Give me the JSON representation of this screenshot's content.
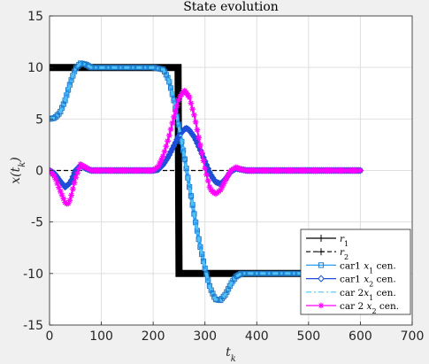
{
  "chart_data": {
    "type": "line",
    "title": "State evolution",
    "xlabel": "t",
    "xlabel_sub": "k",
    "ylabel_main": "x(t",
    "ylabel_sub": "k",
    "ylabel_end": ")",
    "xlim": [
      0,
      700
    ],
    "ylim": [
      -15,
      15
    ],
    "xticks": [
      0,
      100,
      200,
      300,
      400,
      500,
      600,
      700
    ],
    "yticks": [
      -15,
      -10,
      -5,
      0,
      5,
      10,
      15
    ],
    "grid": true,
    "legend_position": "bottom-right",
    "colors": {
      "reference": "#000000",
      "x1": "#2a9df4",
      "x1_edge": "#1f78c8",
      "x2": "#1f4fd8",
      "car2_x1": "#4fc3f7",
      "car2_x2": "#ff00ff"
    },
    "series": [
      {
        "name": "r",
        "name_sub": "1",
        "style": "ref",
        "x": [
          0,
          248,
          248,
          250,
          250,
          600
        ],
        "y": [
          10,
          10,
          10,
          -10,
          -10,
          -10
        ]
      },
      {
        "name": "r",
        "name_sub": "2",
        "style": "ref-dashed",
        "x": [
          0,
          250,
          250,
          600
        ],
        "y": [
          0,
          0,
          0,
          0
        ]
      },
      {
        "name": "car1 ",
        "name_math": "x",
        "name_sub": "1",
        "name_end": " cen.",
        "style": "square",
        "x": [
          0,
          10,
          20,
          30,
          40,
          50,
          60,
          70,
          80,
          100,
          150,
          200,
          220,
          230,
          240,
          250,
          260,
          270,
          280,
          290,
          300,
          310,
          320,
          330,
          340,
          350,
          360,
          370,
          380,
          400,
          600
        ],
        "y": [
          5,
          5.1,
          5.6,
          6.8,
          8.5,
          9.9,
          10.4,
          10.3,
          10,
          10,
          10,
          10,
          9.8,
          8.8,
          6.8,
          4.2,
          1.4,
          -1.6,
          -4.5,
          -7.2,
          -9.5,
          -11.4,
          -12.5,
          -12.6,
          -12,
          -11,
          -10.3,
          -10,
          -10,
          -10,
          -10
        ]
      },
      {
        "name": "car1 ",
        "name_math": "x",
        "name_sub": "2",
        "name_end": " cen.",
        "style": "diamond",
        "x": [
          0,
          10,
          20,
          30,
          40,
          50,
          60,
          70,
          80,
          100,
          200,
          210,
          220,
          230,
          240,
          250,
          260,
          265,
          270,
          280,
          290,
          300,
          310,
          320,
          330,
          340,
          350,
          360,
          370,
          380,
          400,
          600
        ],
        "y": [
          0,
          -0.3,
          -1,
          -1.6,
          -1.2,
          0,
          0.5,
          0.2,
          0,
          0,
          0,
          0.1,
          0.6,
          1.4,
          2.4,
          3.4,
          4,
          4.1,
          3.9,
          3.2,
          2.1,
          0.9,
          -0.3,
          -1.1,
          -1.3,
          -0.8,
          -0.1,
          0.2,
          0.1,
          0,
          0,
          0
        ]
      },
      {
        "name": "car 2",
        "name_math": "x",
        "name_sub": "1",
        "name_end": " cen.",
        "style": "dashdot",
        "x": [
          0,
          10,
          20,
          30,
          40,
          50,
          60,
          70,
          80,
          100,
          150,
          200,
          220,
          230,
          240,
          250,
          260,
          270,
          280,
          290,
          300,
          310,
          320,
          330,
          340,
          350,
          360,
          370,
          380,
          400,
          600
        ],
        "y": [
          5,
          5.1,
          5.6,
          6.8,
          8.5,
          9.9,
          10.4,
          10.3,
          10,
          10,
          10,
          10,
          9.8,
          8.8,
          6.8,
          4.2,
          1.4,
          -1.6,
          -4.5,
          -7.2,
          -9.5,
          -11.4,
          -12.5,
          -12.6,
          -12,
          -11,
          -10.3,
          -10,
          -10,
          -10,
          -10
        ]
      },
      {
        "name": "car 2 ",
        "name_math": "x",
        "name_sub": "2",
        "name_end": " cen.",
        "style": "star",
        "x": [
          0,
          10,
          20,
          30,
          35,
          40,
          50,
          60,
          70,
          80,
          100,
          200,
          210,
          220,
          230,
          240,
          250,
          260,
          270,
          280,
          290,
          300,
          310,
          320,
          330,
          340,
          350,
          360,
          370,
          380,
          400,
          600
        ],
        "y": [
          0,
          -0.6,
          -1.9,
          -3.1,
          -3.3,
          -2.8,
          -0.8,
          0.6,
          0.3,
          0,
          0,
          0,
          0.4,
          1.5,
          3.2,
          5.2,
          7,
          7.8,
          7.1,
          5.2,
          2.7,
          0.2,
          -1.8,
          -2.3,
          -1.9,
          -0.9,
          0,
          0.3,
          0.1,
          0,
          0,
          0
        ]
      }
    ]
  }
}
